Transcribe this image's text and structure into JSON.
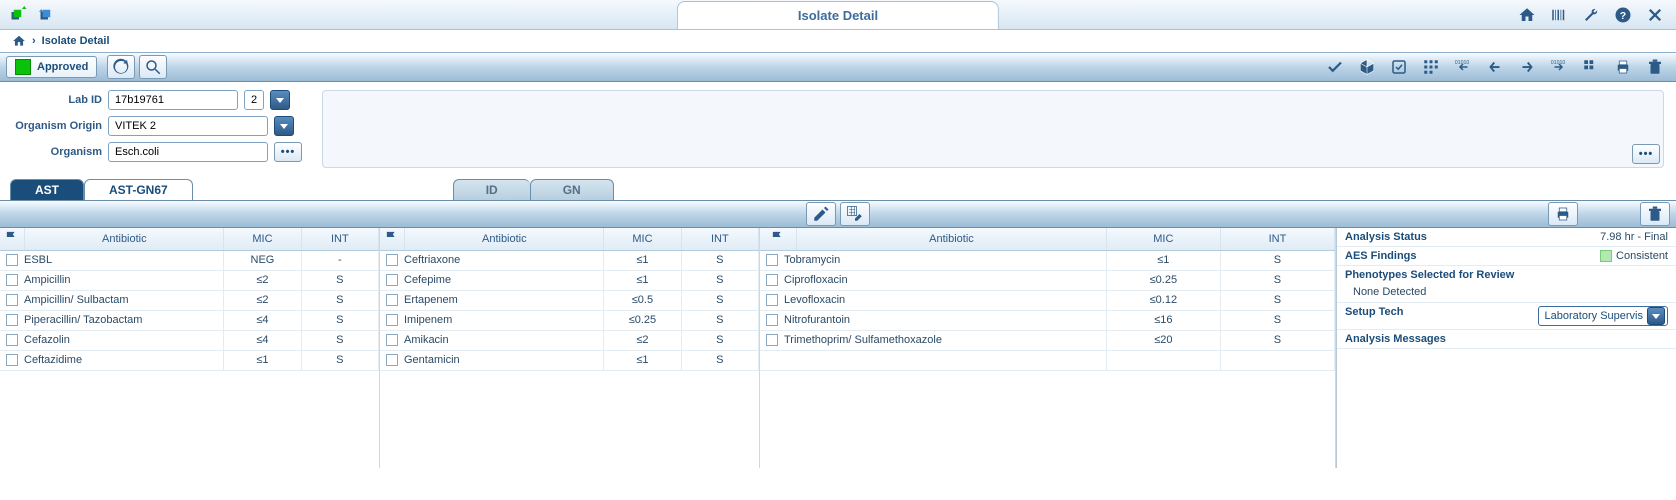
{
  "header": {
    "title": "Isolate Detail",
    "breadcrumb": "Isolate Detail"
  },
  "toolbar": {
    "status": "Approved"
  },
  "form": {
    "lab_id_label": "Lab ID",
    "lab_id": "17b19761",
    "lab_seq": "2",
    "origin_label": "Organism Origin",
    "origin": "VITEK 2",
    "organism_label": "Organism",
    "organism": "Esch.coli"
  },
  "tabs": {
    "ast": "AST",
    "ast_card": "AST-GN67",
    "id": "ID",
    "gn": "GN"
  },
  "columns": {
    "antibiotic": "Antibiotic",
    "mic": "MIC",
    "int": "INT"
  },
  "table1": [
    {
      "name": "ESBL",
      "mic": "NEG",
      "int": "-"
    },
    {
      "name": "Ampicillin",
      "mic": "≤2",
      "int": "S"
    },
    {
      "name": "Ampicillin/ Sulbactam",
      "mic": "≤2",
      "int": "S"
    },
    {
      "name": "Piperacillin/ Tazobactam",
      "mic": "≤4",
      "int": "S"
    },
    {
      "name": "Cefazolin",
      "mic": "≤4",
      "int": "S"
    },
    {
      "name": "Ceftazidime",
      "mic": "≤1",
      "int": "S"
    }
  ],
  "table2": [
    {
      "name": "Ceftriaxone",
      "mic": "≤1",
      "int": "S"
    },
    {
      "name": "Cefepime",
      "mic": "≤1",
      "int": "S"
    },
    {
      "name": "Ertapenem",
      "mic": "≤0.5",
      "int": "S"
    },
    {
      "name": "Imipenem",
      "mic": "≤0.25",
      "int": "S"
    },
    {
      "name": "Amikacin",
      "mic": "≤2",
      "int": "S"
    },
    {
      "name": "Gentamicin",
      "mic": "≤1",
      "int": "S"
    }
  ],
  "table3": [
    {
      "name": "Tobramycin",
      "mic": "≤1",
      "int": "S"
    },
    {
      "name": "Ciprofloxacin",
      "mic": "≤0.25",
      "int": "S"
    },
    {
      "name": "Levofloxacin",
      "mic": "≤0.12",
      "int": "S"
    },
    {
      "name": "Nitrofurantoin",
      "mic": "≤16",
      "int": "S"
    },
    {
      "name": "Trimethoprim/ Sulfamethoxazole",
      "mic": "≤20",
      "int": "S"
    }
  ],
  "analysis": {
    "status_label": "Analysis Status",
    "status_value": "7.98 hr - Final",
    "findings_label": "AES Findings",
    "findings_value": "Consistent",
    "phenotypes_label": "Phenotypes Selected for Review",
    "phenotypes_value": "None Detected",
    "setup_label": "Setup Tech",
    "setup_value": "Laboratory Supervis",
    "messages_label": "Analysis Messages"
  }
}
